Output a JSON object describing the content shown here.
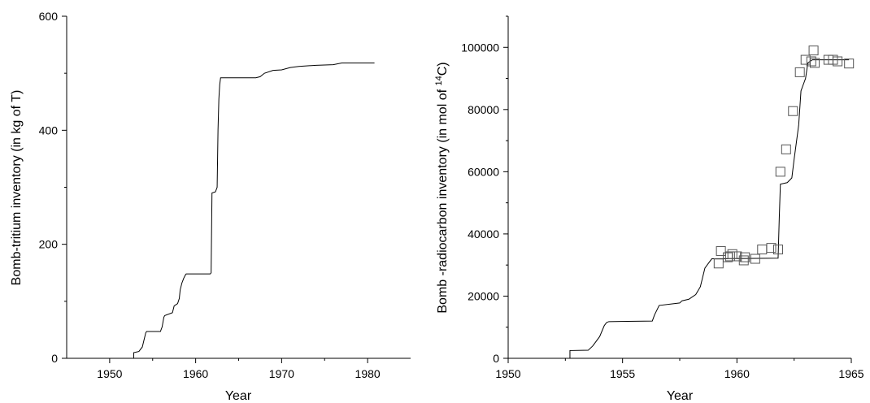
{
  "chart_data": [
    {
      "type": "line",
      "xlabel": "Year",
      "ylabel": "Bomb-tritium inventory (in kg of T)",
      "xlim": [
        1945,
        1985
      ],
      "ylim": [
        0,
        600
      ],
      "xticks": [
        1950,
        1960,
        1970,
        1980
      ],
      "yticks": [
        0,
        200,
        400,
        600
      ],
      "grid": false,
      "series": [
        {
          "style": "step",
          "x": [
            1945.5,
            1952.8,
            1952.8,
            1953.4,
            1953.8,
            1954.2,
            1954.3,
            1955.9,
            1956.1,
            1956.3,
            1956.4,
            1957.3,
            1957.5,
            1957.9,
            1958.1,
            1958.2,
            1958.4,
            1958.6,
            1958.8,
            1958.9,
            1959.0,
            1961.7,
            1961.8,
            1961.9,
            1962.3,
            1962.5,
            1962.6,
            1962.7,
            1962.8,
            1962.9,
            1963.0,
            1967.0,
            1967.5,
            1968.0,
            1969.0,
            1970.0,
            1971.0,
            1972.0,
            1974.0,
            1976.0,
            1977.0,
            1980.8
          ],
          "y": [
            0,
            0,
            10,
            12,
            20,
            45,
            47,
            47,
            55,
            72,
            75,
            80,
            92,
            96,
            105,
            120,
            132,
            140,
            146,
            148,
            148,
            148,
            150,
            290,
            292,
            300,
            400,
            455,
            480,
            492,
            492,
            492,
            494,
            500,
            505,
            506,
            510,
            512,
            514,
            515,
            518,
            518
          ]
        }
      ]
    },
    {
      "type": "line",
      "xlabel": "Year",
      "ylabel": "Bomb -radiocarbon inventory (in mol of 14C)",
      "xlim": [
        1950,
        1965
      ],
      "ylim": [
        0,
        110000
      ],
      "xticks": [
        1950,
        1955,
        1960,
        1965
      ],
      "yticks": [
        0,
        20000,
        40000,
        60000,
        80000,
        100000
      ],
      "grid": false,
      "series": [
        {
          "style": "step",
          "x": [
            1951.0,
            1952.7,
            1952.7,
            1953.5,
            1953.7,
            1954.0,
            1954.2,
            1954.3,
            1954.4,
            1956.3,
            1956.4,
            1956.5,
            1956.6,
            1957.5,
            1957.6,
            1957.9,
            1958.2,
            1958.4,
            1958.5,
            1958.6,
            1958.8,
            1958.9,
            1959.0,
            1961.8,
            1961.85,
            1961.9,
            1962.2,
            1962.4,
            1962.5,
            1962.7,
            1962.8,
            1963.0,
            1963.1,
            1963.3,
            1964.0,
            1964.9
          ],
          "y": [
            0,
            0,
            2500,
            2600,
            4000,
            7000,
            10500,
            11500,
            11800,
            12000,
            14000,
            15500,
            17000,
            17800,
            18500,
            19000,
            20500,
            23000,
            26000,
            29000,
            31000,
            32000,
            32000,
            32200,
            45000,
            56000,
            56500,
            58000,
            64000,
            75000,
            86000,
            90000,
            95000,
            96000,
            96000,
            96000
          ]
        },
        {
          "style": "markers",
          "marker": "square",
          "x": [
            1959.2,
            1959.3,
            1959.6,
            1959.7,
            1959.8,
            1960.0,
            1960.3,
            1960.35,
            1960.8,
            1961.1,
            1961.5,
            1961.8,
            1961.9,
            1962.15,
            1962.45,
            1962.75,
            1963.0,
            1963.25,
            1963.35,
            1963.4,
            1964.0,
            1964.2,
            1964.4,
            1964.9
          ],
          "y": [
            30500,
            34500,
            32500,
            32800,
            33500,
            32800,
            31500,
            32500,
            32000,
            35000,
            35500,
            35000,
            60000,
            67200,
            79500,
            92000,
            96000,
            95500,
            99000,
            95000,
            96000,
            96000,
            95500,
            94800
          ]
        }
      ]
    }
  ]
}
